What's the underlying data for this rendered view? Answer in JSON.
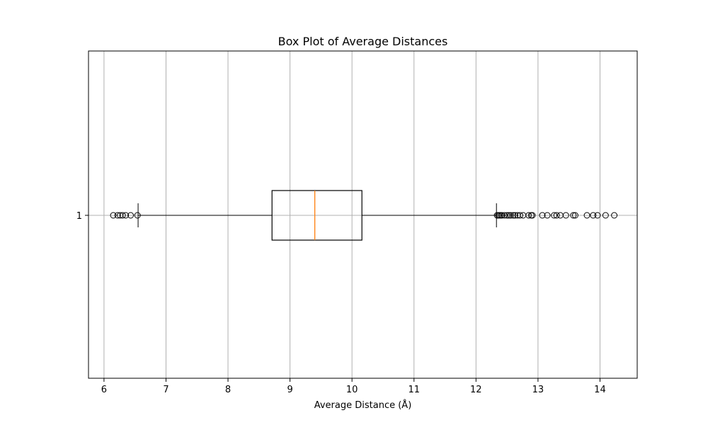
{
  "chart_data": {
    "type": "box",
    "title": "Box Plot of Average Distances",
    "xlabel": "Average Distance (Å)",
    "ylabel": "",
    "orientation": "horizontal",
    "xlim": [
      5.75,
      14.6
    ],
    "x_ticks": [
      6,
      7,
      8,
      9,
      10,
      11,
      12,
      13,
      14
    ],
    "y_ticks": [
      "1"
    ],
    "grid": true,
    "boxes": [
      {
        "position": 1,
        "label": "1",
        "whisker_low": 6.55,
        "q1": 8.71,
        "median": 9.4,
        "q3": 10.16,
        "whisker_high": 12.33,
        "outliers": [
          6.15,
          6.22,
          6.26,
          6.3,
          6.35,
          6.43,
          6.54,
          12.34,
          12.36,
          12.38,
          12.4,
          12.42,
          12.46,
          12.5,
          12.53,
          12.56,
          12.6,
          12.63,
          12.67,
          12.71,
          12.76,
          12.85,
          12.89,
          12.91,
          13.07,
          13.15,
          13.26,
          13.3,
          13.36,
          13.45,
          13.57,
          13.6,
          13.79,
          13.89,
          13.96,
          14.09,
          14.23
        ]
      }
    ],
    "colors": {
      "box": "#000000",
      "median": "#ff7f0e",
      "grid": "#b0b0b0",
      "outlier_edge": "#000000"
    }
  }
}
